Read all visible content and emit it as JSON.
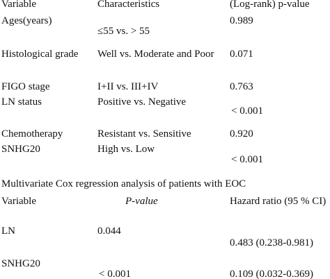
{
  "table1": {
    "header": [
      "Variable",
      "Characteristics",
      "(Log-rank) p-value"
    ],
    "rows": [
      [
        "Ages(years)",
        "≤55 vs. > 55",
        "0.989"
      ],
      [
        "Histological grade",
        "Well vs. Moderate and Poor",
        "0.071"
      ],
      [
        "FIGO stage",
        "I+II vs. III+IV",
        "0.763"
      ],
      [
        "LN status",
        "Positive vs. Negative",
        "< 0.001"
      ],
      [
        "Chemotherapy",
        "Resistant vs. Sensitive",
        "0.920"
      ],
      [
        "SNHG20",
        "High vs. Low",
        "< 0.001"
      ]
    ]
  },
  "title2": "Multivariate Cox regression analysis of patients with EOC",
  "table2": {
    "header": [
      "Variable",
      "P-value",
      "Hazard ratio (95 % CI)"
    ],
    "rows": [
      [
        "LN",
        "0.044",
        "0.483 (0.238-0.981)"
      ],
      [
        "SNHG20",
        "< 0.001",
        "0.109 (0.032-0.369)"
      ]
    ]
  }
}
